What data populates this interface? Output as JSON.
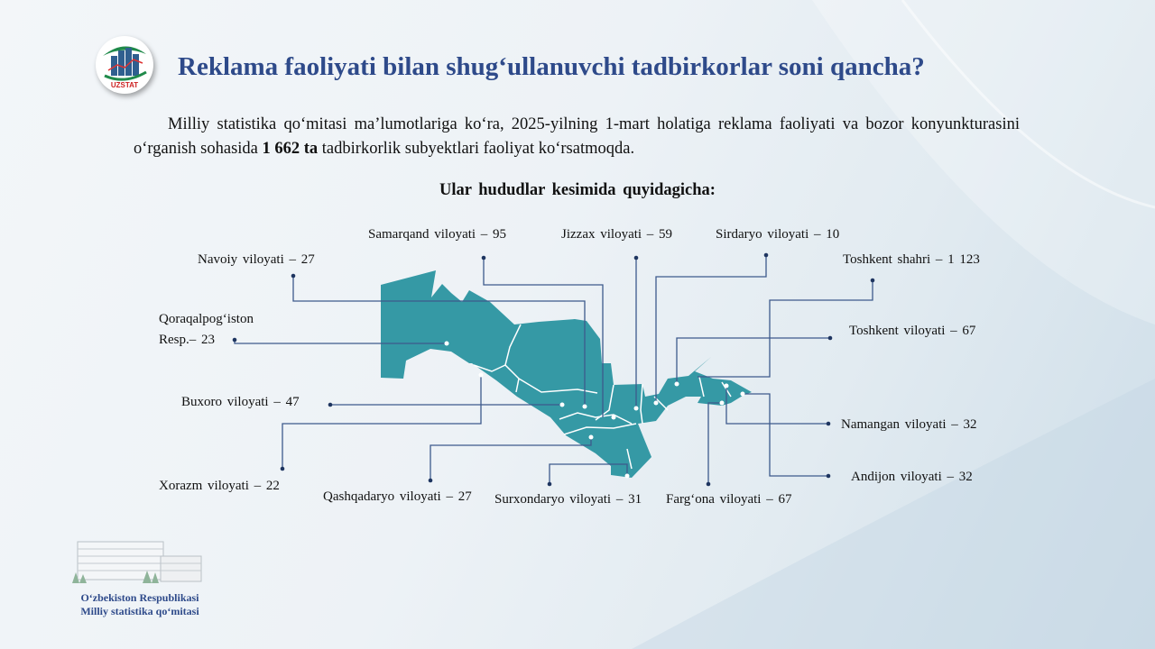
{
  "header": {
    "logo_text": "UZSTAT",
    "title": "Reklama faoliyati bilan shug‘ullanuvchi tadbirkorlar soni qancha?"
  },
  "intro": {
    "text_before": "Milliy statistika qo‘mitasi ma’lumotlariga ko‘ra, 2025-yilning 1-mart holatiga reklama faoliyati va bozor konyunkturasini o‘rganish sohasida ",
    "highlight": "1 662 ta",
    "text_after": " tadbirkorlik subyektlari faoliyat ko‘rsatmoqda."
  },
  "subtitle": "Ular hududlar kesimida quyidagicha:",
  "map": {
    "fill_color": "#3599a5",
    "leader_color": "#3d5a8c",
    "regions": [
      {
        "label": "Samarqand viloyati – 95"
      },
      {
        "label": "Jizzax viloyati – 59"
      },
      {
        "label": "Sirdaryo viloyati – 10"
      },
      {
        "label": "Navoiy viloyati – 27"
      },
      {
        "label": "Toshkent shahri – 1 123"
      },
      {
        "label": "Qoraqalpog‘iston"
      },
      {
        "label": "Resp.– 23"
      },
      {
        "label": "Toshkent viloyati – 67"
      },
      {
        "label": "Buxoro viloyati – 47"
      },
      {
        "label": "Namangan viloyati – 32"
      },
      {
        "label": "Andijon viloyati – 32"
      },
      {
        "label": "Xorazm viloyati – 22"
      },
      {
        "label": "Qashqadaryo viloyati – 27"
      },
      {
        "label": "Surxondaryo viloyati – 31"
      },
      {
        "label": "Farg‘ona viloyati – 67"
      }
    ]
  },
  "footer": {
    "line1": "O‘zbekiston Respublikasi",
    "line2": "Milliy statistika qo‘mitasi"
  }
}
